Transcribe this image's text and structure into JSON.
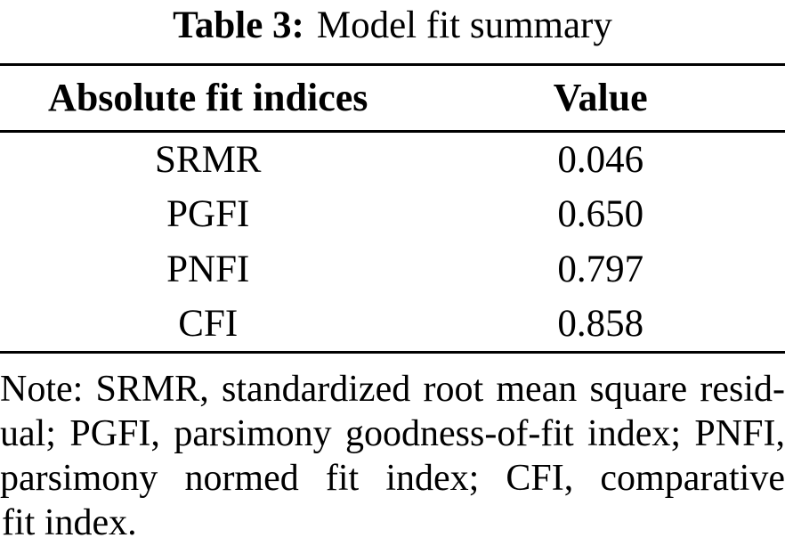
{
  "caption": {
    "label": "Table 3:",
    "text": "Model fit summary"
  },
  "table": {
    "columns": [
      "Absolute fit indices",
      "Value"
    ],
    "rows": [
      {
        "index": "SRMR",
        "value": "0.046"
      },
      {
        "index": "PGFI",
        "value": "0.650"
      },
      {
        "index": "PNFI",
        "value": "0.797"
      },
      {
        "index": "CFI",
        "value": "0.858"
      }
    ]
  },
  "note": {
    "lines": [
      "Note: SRMR, standardized root mean square resid-",
      "ual; PGFI, parsimony goodness-of-fit index; PNFI,",
      "parsimony normed fit index; CFI, comparative",
      "fit index."
    ],
    "full_text": "Note: SRMR, standardized root mean square residual; PGFI, parsimony goodness-of-fit index; PNFI, parsimony normed fit index; CFI, comparative fit index."
  },
  "colors": {
    "text": "#000000",
    "background": "#ffffff",
    "rule": "#000000"
  }
}
